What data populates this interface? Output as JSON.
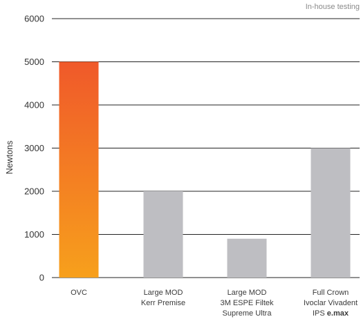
{
  "note": "In-house testing",
  "chart_data": {
    "type": "bar",
    "ylabel": "Newtons",
    "ylim": [
      0,
      6000
    ],
    "yticks": [
      0,
      1000,
      2000,
      3000,
      4000,
      5000,
      6000
    ],
    "grid": true,
    "categories": [
      [
        "OVC"
      ],
      [
        "Large MOD",
        "Kerr Premise"
      ],
      [
        "Large MOD",
        "3M ESPE Filtek",
        "Supreme Ultra"
      ],
      [
        "Full Crown",
        "Ivoclar Vivadent",
        "IPS e.max"
      ]
    ],
    "values": [
      5000,
      2000,
      900,
      3000
    ],
    "colors": [
      "gradient-orange",
      "#bebec2",
      "#bebec2",
      "#bebec2"
    ],
    "gradient": {
      "top": "#f0592a",
      "bottom": "#f7a01c"
    }
  }
}
